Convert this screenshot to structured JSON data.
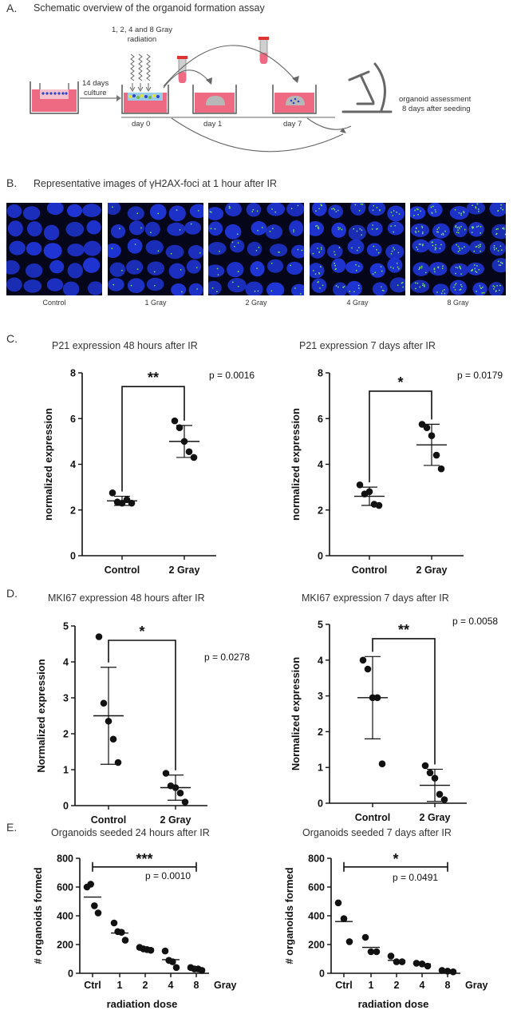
{
  "section_a": {
    "letter": "A.",
    "title": "Schematic overview of the organoid formation assay",
    "radiation_line1": "1, 2, 4 and 8 Gray",
    "radiation_line2": "radiation",
    "culture_line1": "14 days",
    "culture_line2": "culture",
    "day0": "day 0",
    "day1": "day 1",
    "day7": "day 7",
    "assessment_line1": "organoid assessment",
    "assessment_line2": "8 days after seeding"
  },
  "section_b": {
    "letter": "B.",
    "title": "Representative images of γH2AX-foci at 1 hour after IR",
    "images": [
      {
        "label": "Control",
        "foci": 0
      },
      {
        "label": "1 Gray",
        "foci": 1
      },
      {
        "label": "2 Gray",
        "foci": 2
      },
      {
        "label": "4 Gray",
        "foci": 4
      },
      {
        "label": "8 Gray",
        "foci": 8
      }
    ]
  },
  "section_c_letter": "C.",
  "section_d_letter": "D.",
  "section_e_letter": "E.",
  "colors": {
    "nucleus": "#1f35d6",
    "foci": "#7be04a",
    "background": "#05061a",
    "well": "#ee6a83",
    "accent_red": "#e33"
  },
  "chart_data": [
    {
      "id": "c1",
      "type": "scatter",
      "title": "P21 expression 48 hours after IR",
      "ylabel": "normalized expression",
      "categories": [
        "Control",
        "2 Gray"
      ],
      "ylim": [
        0,
        8
      ],
      "yticks": [
        "0",
        "2",
        "4",
        "6",
        "8"
      ],
      "points": [
        [
          2.75,
          2.35,
          2.3,
          2.45,
          2.3
        ],
        [
          5.9,
          5.6,
          5.0,
          4.55,
          4.3
        ]
      ],
      "means": [
        2.4,
        5.0
      ],
      "sds": [
        0.2,
        0.7
      ],
      "bracket_y": 7.4,
      "significance": "**",
      "p_value": "p = 0.0016"
    },
    {
      "id": "c2",
      "type": "scatter",
      "title": "P21 expression 7 days after IR",
      "ylabel": "normalized expression",
      "categories": [
        "Control",
        "2 Gray"
      ],
      "ylim": [
        0,
        8
      ],
      "yticks": [
        "0",
        "2",
        "4",
        "6",
        "8"
      ],
      "points": [
        [
          3.1,
          2.7,
          2.8,
          2.25,
          2.2
        ],
        [
          5.75,
          5.6,
          5.25,
          4.4,
          3.8
        ]
      ],
      "means": [
        2.6,
        4.85
      ],
      "sds": [
        0.4,
        0.9
      ],
      "bracket_y": 7.2,
      "significance": "*",
      "p_value": "p = 0.0179"
    },
    {
      "id": "d1",
      "type": "scatter",
      "title": "MKI67 expression 48 hours after IR",
      "ylabel": "Normalized expression",
      "categories": [
        "Control",
        "2 Gray"
      ],
      "ylim": [
        0,
        5
      ],
      "yticks": [
        "0",
        "1",
        "2",
        "3",
        "4",
        "5"
      ],
      "points": [
        [
          4.7,
          2.85,
          2.35,
          1.85,
          1.2
        ],
        [
          0.9,
          0.55,
          0.5,
          0.35,
          0.1
        ]
      ],
      "means": [
        2.5,
        0.5
      ],
      "sds": [
        1.35,
        0.35
      ],
      "bracket_y": 4.6,
      "bracket_shape": "drop",
      "significance": "*",
      "p_value": "p = 0.0278"
    },
    {
      "id": "d2",
      "type": "scatter",
      "title": "MKI67 expression 7 days after IR",
      "ylabel": "Normalized expression",
      "categories": [
        "Control",
        "2 Gray"
      ],
      "ylim": [
        0,
        5
      ],
      "yticks": [
        "0",
        "1",
        "2",
        "3",
        "4",
        "5"
      ],
      "points": [
        [
          4.0,
          3.75,
          2.95,
          2.95,
          1.1
        ],
        [
          1.05,
          0.85,
          0.7,
          0.25,
          0.1
        ]
      ],
      "means": [
        2.95,
        0.5
      ],
      "sds": [
        1.15,
        0.45
      ],
      "bracket_y": 4.6,
      "bracket_shape": "drop",
      "significance": "**",
      "p_value": "p = 0.0058"
    },
    {
      "id": "e1",
      "type": "scatter",
      "title": "Organoids seeded 24 hours after IR",
      "ylabel": "# organoids formed",
      "xlabel": "radiation dose",
      "x_unit": "Gray",
      "categories": [
        "Ctrl",
        "1",
        "2",
        "4",
        "8"
      ],
      "ylim": [
        0,
        800
      ],
      "yticks": [
        "0",
        "200",
        "400",
        "600",
        "800"
      ],
      "points": [
        [
          600,
          620,
          470,
          420
        ],
        [
          350,
          290,
          285,
          230
        ],
        [
          180,
          170,
          165,
          160
        ],
        [
          155,
          90,
          80,
          40
        ],
        [
          40,
          30,
          30,
          20
        ]
      ],
      "means": [
        530,
        280,
        170,
        95,
        30
      ],
      "bracket_y": 740,
      "significance": "***",
      "p_value": "p = 0.0010"
    },
    {
      "id": "e2",
      "type": "scatter",
      "title": "Organoids seeded 7 days after IR",
      "ylabel": "# organoids formed",
      "xlabel": "radiation dose",
      "x_unit": "Gray",
      "categories": [
        "Ctrl",
        "1",
        "2",
        "4",
        "8"
      ],
      "ylim": [
        0,
        800
      ],
      "yticks": [
        "0",
        "200",
        "400",
        "600",
        "800"
      ],
      "points": [
        [
          490,
          380,
          220
        ],
        [
          250,
          150,
          150
        ],
        [
          120,
          80,
          80
        ],
        [
          70,
          65,
          50
        ],
        [
          20,
          15,
          10
        ]
      ],
      "means": [
        360,
        180,
        90,
        65,
        15
      ],
      "bracket_y": 740,
      "significance": "*",
      "p_value": "p = 0.0491"
    }
  ]
}
